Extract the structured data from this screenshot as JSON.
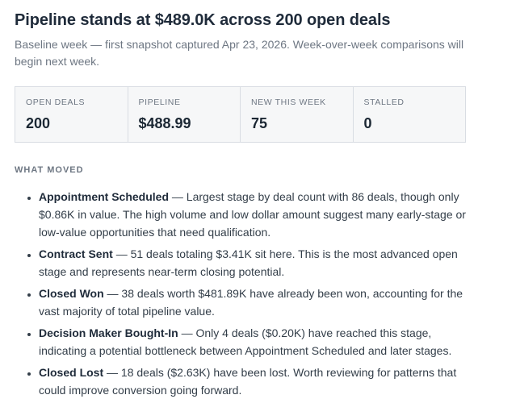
{
  "page": {
    "title": "Pipeline stands at $489.0K across 200 open deals",
    "subtitle": "Baseline week — first snapshot captured Apr 23, 2026. Week-over-week comparisons will begin next week."
  },
  "stats": {
    "items": [
      {
        "label": "OPEN DEALS",
        "value": "200"
      },
      {
        "label": "PIPELINE",
        "value": "$488.99"
      },
      {
        "label": "NEW THIS WEEK",
        "value": "75"
      },
      {
        "label": "STALLED",
        "value": "0"
      }
    ]
  },
  "what_moved": {
    "heading": "WHAT MOVED",
    "items": [
      {
        "stage": "Appointment Scheduled",
        "sep": "—",
        "text": "Largest stage by deal count with 86 deals, though only $0.86K in value. The high volume and low dollar amount suggest many early-stage or low-value opportunities that need qualification."
      },
      {
        "stage": "Contract Sent",
        "sep": "—",
        "text": "51 deals totaling $3.41K sit here. This is the most advanced open stage and represents near-term closing potential."
      },
      {
        "stage": "Closed Won",
        "sep": "—",
        "text": "38 deals worth $481.89K have already been won, accounting for the vast majority of total pipeline value."
      },
      {
        "stage": "Decision Maker Bought-In",
        "sep": "—",
        "text": "Only 4 deals ($0.20K) have reached this stage, indicating a potential bottleneck between Appointment Scheduled and later stages."
      },
      {
        "stage": "Closed Lost",
        "sep": "—",
        "text": "18 deals ($2.63K) have been lost. Worth reviewing for patterns that could improve conversion going forward."
      }
    ]
  },
  "theme": {
    "title-color": "#1f2b3a",
    "body-color": "#333e49",
    "muted-color": "#6e7783",
    "panel-bg": "#f6f7f8",
    "panel-border": "#d9dde3",
    "value-color": "#1b2733",
    "page-bg": "#ffffff"
  }
}
